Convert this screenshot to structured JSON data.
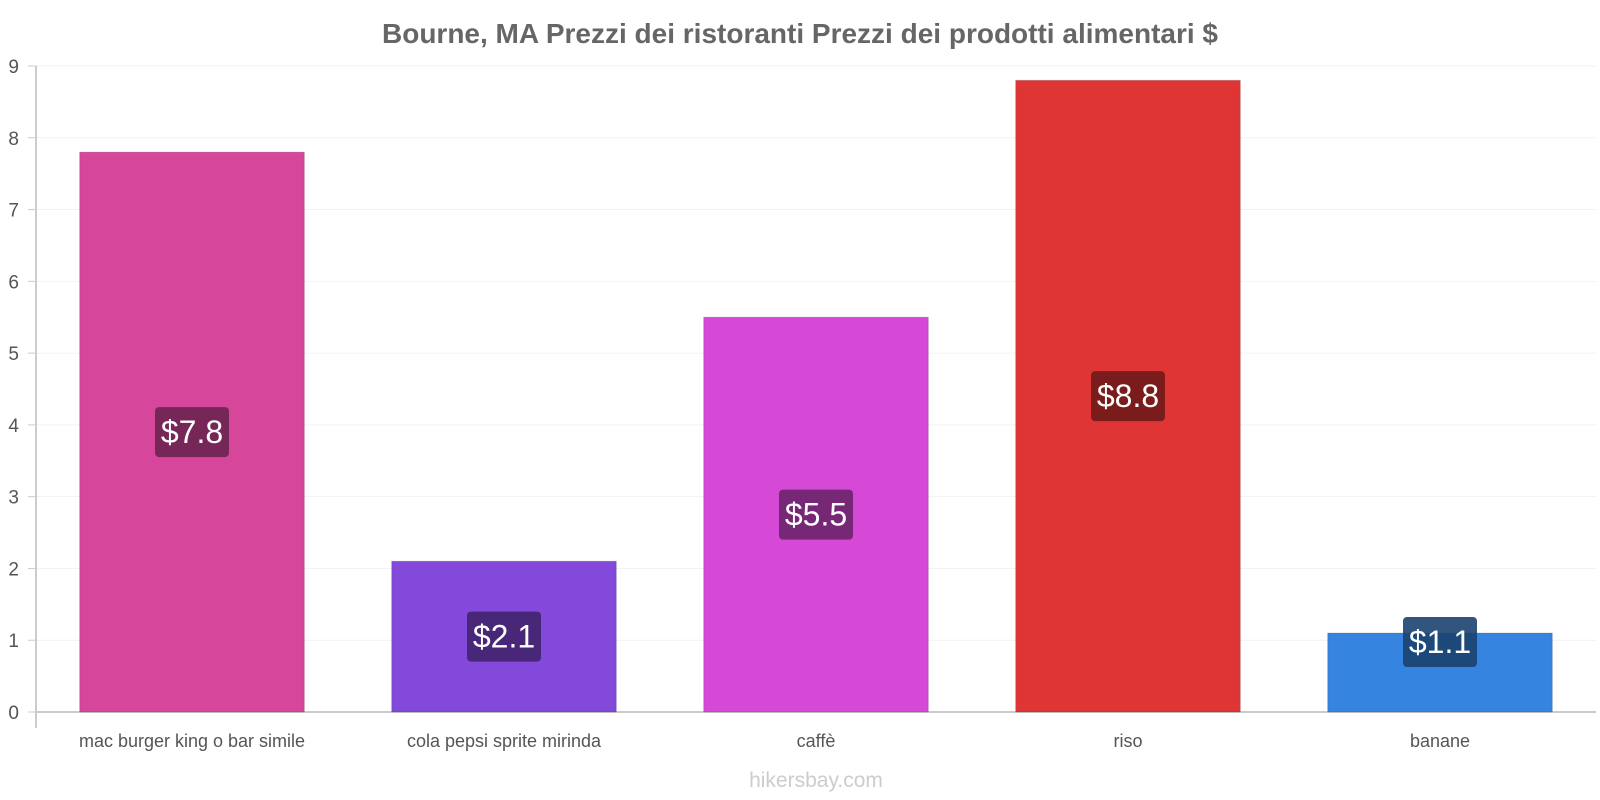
{
  "chart_data": {
    "type": "bar",
    "title": "Bourne, MA Prezzi dei ristoranti Prezzi dei prodotti alimentari $",
    "categories": [
      "mac burger king o bar simile",
      "cola pepsi sprite mirinda",
      "caffè",
      "riso",
      "banane"
    ],
    "values": [
      7.8,
      2.1,
      5.5,
      8.8,
      1.1
    ],
    "value_labels": [
      "$7.8",
      "$2.1",
      "$5.5",
      "$8.8",
      "$1.1"
    ],
    "colors": [
      "#d6479c",
      "#8249db",
      "#d648d6",
      "#e03535",
      "#3584e0"
    ],
    "label_colors": [
      "#6b2350",
      "#41246e",
      "#6b246b",
      "#701a1a",
      "#1b426f"
    ],
    "ylim": [
      0,
      9
    ],
    "yticks": [
      "0",
      "1",
      "2",
      "3",
      "4",
      "5",
      "6",
      "7",
      "8",
      "9"
    ],
    "xlabel": "",
    "ylabel": "",
    "grid": true
  },
  "watermark": "hikersbay.com"
}
